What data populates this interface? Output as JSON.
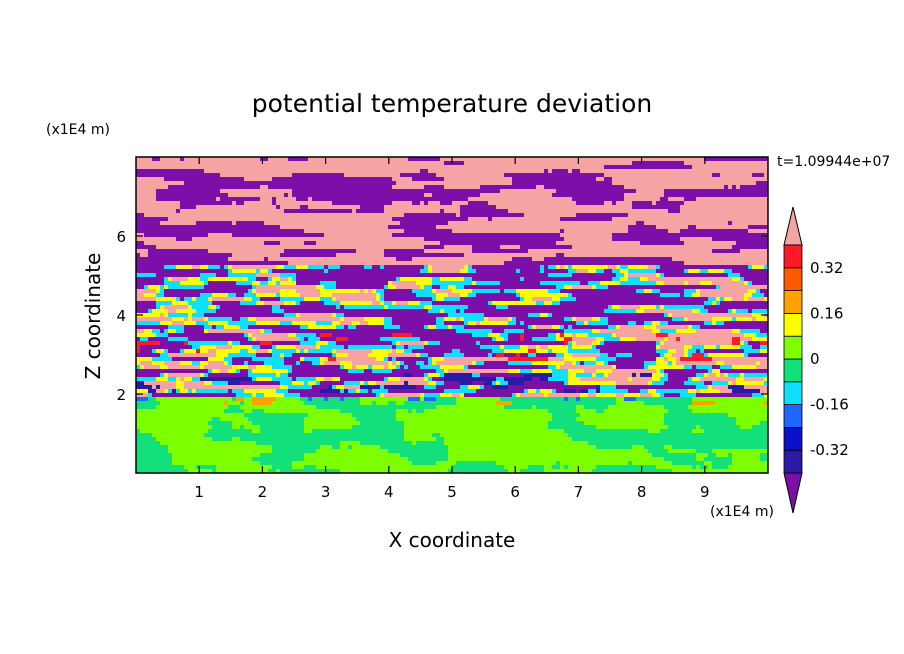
{
  "chart_data": {
    "type": "heatmap",
    "title": "potential temperature deviation",
    "xlabel": "X coordinate",
    "ylabel": "Z coordinate",
    "x_unit": "(x1E4 m)",
    "y_unit": "(x1E4 m)",
    "time_label": "t=1.09944e+07",
    "xlim": [
      0,
      10
    ],
    "ylim": [
      0,
      8
    ],
    "x_ticks": [
      1,
      2,
      3,
      4,
      5,
      6,
      7,
      8,
      9
    ],
    "y_ticks": [
      2,
      4,
      6
    ],
    "colorbar": {
      "levels": [
        -0.48,
        -0.4,
        -0.32,
        -0.24,
        -0.16,
        -0.08,
        0,
        0.08,
        0.16,
        0.24,
        0.32,
        0.4,
        0.48
      ],
      "colors": [
        "#7b0fa8",
        "#2a1aa6",
        "#0a10c8",
        "#1f68ff",
        "#10e0ff",
        "#12e07a",
        "#7eff00",
        "#fcff00",
        "#ffa200",
        "#ff5a00",
        "#ff1a26",
        "#f6a3a3"
      ],
      "tick_labels": [
        "0.32",
        "0.16",
        "0",
        "-0.16",
        "-0.32"
      ],
      "tick_values": [
        0.32,
        0.16,
        0,
        -0.16,
        -0.32
      ]
    },
    "regions": [
      {
        "z_range": [
          0,
          2
        ],
        "dominant_values": [
          0,
          0.08
        ],
        "description": "lower layer mostly green/light green"
      },
      {
        "z_range": [
          2,
          5.5
        ],
        "dominant_values": [
          -0.48,
          0.48
        ],
        "description": "mixed banded layer with red/orange/yellow/cyan/blue streaks"
      },
      {
        "z_range": [
          5.5,
          8
        ],
        "dominant_values": [
          -0.48,
          0.48
        ],
        "description": "upper layer purple and pink bands"
      }
    ]
  }
}
